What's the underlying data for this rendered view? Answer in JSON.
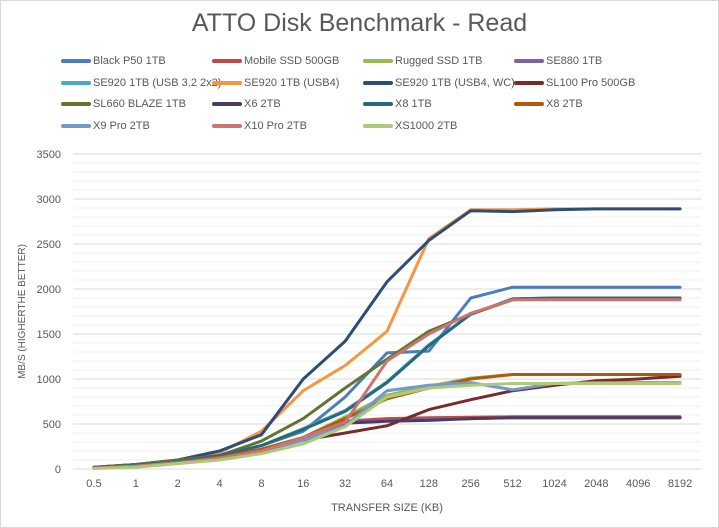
{
  "chart_data": {
    "type": "line",
    "title": "ATTO Disk Benchmark - Read",
    "xlabel": "TRANSFER SIZE (KB)",
    "ylabel": "MB/S (HIGHERTHE BETTER)",
    "ylim": [
      0,
      3500
    ],
    "yticks": [
      0,
      500,
      1000,
      1500,
      2000,
      2500,
      3000,
      3500
    ],
    "categories": [
      "0.5",
      "1",
      "2",
      "4",
      "8",
      "16",
      "32",
      "64",
      "128",
      "256",
      "512",
      "1024",
      "2048",
      "4096",
      "8192"
    ],
    "grid": true,
    "legend_position": "top",
    "series": [
      {
        "name": "Black P50 1TB",
        "color": "#4a7ebb",
        "values": [
          15,
          40,
          80,
          150,
          260,
          420,
          800,
          1290,
          1310,
          1900,
          2020,
          2020,
          2020,
          2020,
          2020
        ]
      },
      {
        "name": "Mobile SSD 500GB",
        "color": "#be4b48",
        "values": [
          10,
          30,
          70,
          120,
          200,
          340,
          530,
          560,
          570,
          575,
          580,
          580,
          580,
          580,
          580
        ]
      },
      {
        "name": "Rugged SSD 1TB",
        "color": "#98b954",
        "values": [
          10,
          30,
          70,
          130,
          220,
          350,
          580,
          820,
          920,
          1010,
          1050,
          1050,
          1050,
          1050,
          1040
        ]
      },
      {
        "name": "SE880 1TB",
        "color": "#7d60a0",
        "values": [
          10,
          30,
          70,
          130,
          210,
          340,
          520,
          540,
          550,
          560,
          570,
          570,
          570,
          570,
          570
        ]
      },
      {
        "name": "SE920 1TB (USB 3.2 2x2)",
        "color": "#46aac5",
        "values": [
          15,
          40,
          80,
          150,
          260,
          450,
          650,
          970,
          1380,
          1720,
          1890,
          1900,
          1900,
          1900,
          1900
        ]
      },
      {
        "name": "SE920 1TB (USB4)",
        "color": "#f69544",
        "values": [
          20,
          50,
          100,
          180,
          420,
          870,
          1150,
          1530,
          2560,
          2880,
          2880,
          2890,
          2890,
          2890,
          2890
        ]
      },
      {
        "name": "SE920 1TB (USB4, WC)",
        "color": "#2c4d75",
        "values": [
          20,
          50,
          100,
          200,
          380,
          1000,
          1420,
          2080,
          2540,
          2870,
          2860,
          2880,
          2890,
          2890,
          2890
        ]
      },
      {
        "name": "SL100 Pro 500GB",
        "color": "#772c2a",
        "values": [
          10,
          30,
          70,
          120,
          200,
          320,
          400,
          480,
          660,
          770,
          870,
          930,
          980,
          1000,
          1030
        ]
      },
      {
        "name": "SL660 BLAZE 1TB",
        "color": "#5f7530",
        "values": [
          20,
          50,
          100,
          150,
          310,
          560,
          900,
          1220,
          1530,
          1720,
          1880,
          1890,
          1890,
          1890,
          1890
        ]
      },
      {
        "name": "X6 2TB",
        "color": "#4d3b62",
        "values": [
          10,
          30,
          70,
          120,
          200,
          330,
          510,
          530,
          540,
          560,
          570,
          570,
          570,
          570,
          570
        ]
      },
      {
        "name": "X8 1TB",
        "color": "#276a7c",
        "values": [
          15,
          40,
          80,
          150,
          260,
          440,
          640,
          960,
          1370,
          1720,
          1890,
          1900,
          1900,
          1900,
          1900
        ]
      },
      {
        "name": "X8 2TB",
        "color": "#b65708",
        "values": [
          10,
          30,
          70,
          130,
          220,
          350,
          560,
          780,
          900,
          1000,
          1050,
          1050,
          1050,
          1050,
          1050
        ]
      },
      {
        "name": "X9 Pro 2TB",
        "color": "#729aca",
        "values": [
          10,
          30,
          70,
          120,
          200,
          320,
          480,
          870,
          930,
          960,
          880,
          950,
          960,
          960,
          960
        ]
      },
      {
        "name": "X10 Pro 2TB",
        "color": "#cd7371",
        "values": [
          10,
          30,
          70,
          120,
          200,
          350,
          520,
          1200,
          1500,
          1730,
          1880,
          1880,
          1880,
          1880,
          1880
        ]
      },
      {
        "name": "XS1000 2TB",
        "color": "#afc97a",
        "values": [
          5,
          20,
          60,
          100,
          170,
          280,
          470,
          800,
          900,
          930,
          950,
          950,
          950,
          950,
          950
        ]
      }
    ]
  }
}
